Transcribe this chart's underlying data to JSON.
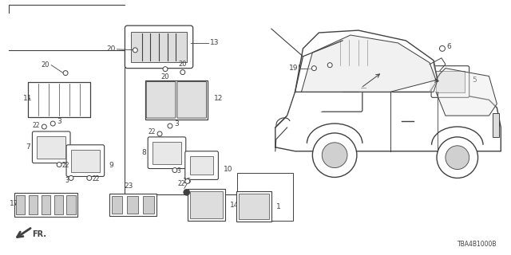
{
  "bg_color": "#ffffff",
  "lc": "#404040",
  "diagram_code": "TBA4B1000B",
  "fig_w": 6.4,
  "fig_h": 3.2,
  "dpi": 100
}
